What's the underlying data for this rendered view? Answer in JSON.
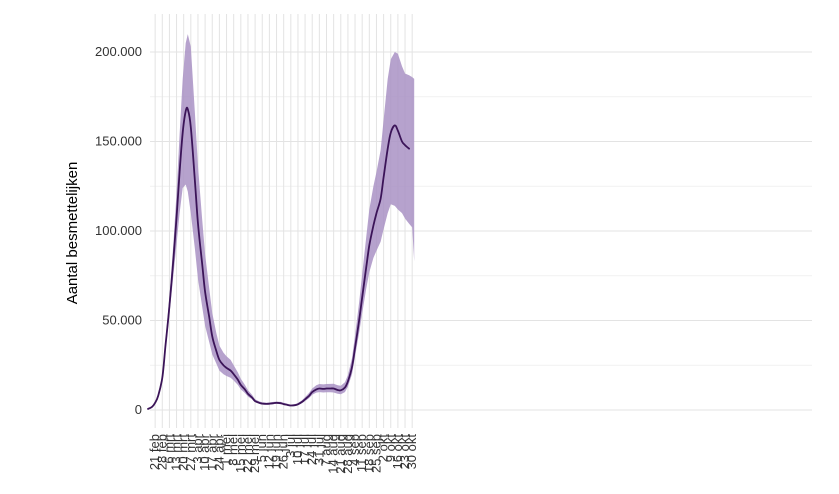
{
  "chart_data": {
    "type": "area",
    "title": "",
    "xlabel": "",
    "ylabel": "Aantal besmettelijken",
    "grid": true,
    "legend": "none",
    "colors": {
      "line": "#3b1458",
      "band": "#a992c4",
      "grid": "#e3e3e3"
    },
    "ylim": [
      0,
      215000
    ],
    "y_ticks": [
      {
        "value": 0,
        "label": "0"
      },
      {
        "value": 50000,
        "label": "50.000"
      },
      {
        "value": 100000,
        "label": "100.000"
      },
      {
        "value": 150000,
        "label": "150.000"
      },
      {
        "value": 200000,
        "label": "200.000"
      }
    ],
    "x_start_date": "2020-02-14",
    "x_ticks": [
      "21 feb",
      "28 feb",
      "6 mrt",
      "13 mrt",
      "20 mrt",
      "27 mrt",
      "3 apr",
      "10 apr",
      "17 apr",
      "24 apr",
      "1 mei",
      "8 mei",
      "15 mei",
      "22 mei",
      "29 mei",
      "5 jun",
      "12 jun",
      "19 jun",
      "26 jun",
      "3 jul",
      "10 jul",
      "17 jul",
      "24 jul",
      "31 jul",
      "7 aug",
      "14 aug",
      "21 aug",
      "28 aug",
      "4 sep",
      "11 sep",
      "18 sep",
      "25 sep",
      "2 okt",
      "9 okt",
      "16 okt",
      "23 okt",
      "30 okt"
    ],
    "series": [
      {
        "values": [
          [
            "2020-02-14",
            600
          ],
          [
            "2020-02-18",
            1800
          ],
          [
            "2020-02-21",
            4000
          ],
          [
            "2020-02-24",
            8000
          ],
          [
            "2020-02-28",
            18000
          ],
          [
            "2020-03-02",
            35000
          ],
          [
            "2020-03-06",
            58000
          ],
          [
            "2020-03-10",
            85000
          ],
          [
            "2020-03-13",
            108000
          ],
          [
            "2020-03-16",
            133000
          ],
          [
            "2020-03-19",
            155000
          ],
          [
            "2020-03-22",
            167000
          ],
          [
            "2020-03-24",
            168000
          ],
          [
            "2020-03-27",
            158000
          ],
          [
            "2020-03-31",
            128000
          ],
          [
            "2020-04-03",
            104000
          ],
          [
            "2020-04-07",
            82000
          ],
          [
            "2020-04-10",
            66000
          ],
          [
            "2020-04-14",
            52000
          ],
          [
            "2020-04-17",
            41000
          ],
          [
            "2020-04-21",
            33000
          ],
          [
            "2020-04-24",
            28000
          ],
          [
            "2020-04-28",
            25000
          ],
          [
            "2020-05-01",
            23500
          ],
          [
            "2020-05-05",
            22000
          ],
          [
            "2020-05-08",
            20000
          ],
          [
            "2020-05-12",
            17000
          ],
          [
            "2020-05-15",
            14000
          ],
          [
            "2020-05-19",
            11500
          ],
          [
            "2020-05-22",
            9000
          ],
          [
            "2020-05-26",
            7000
          ],
          [
            "2020-05-29",
            5000
          ],
          [
            "2020-06-02",
            4000
          ],
          [
            "2020-06-05",
            3600
          ],
          [
            "2020-06-09",
            3400
          ],
          [
            "2020-06-12",
            3500
          ],
          [
            "2020-06-16",
            3800
          ],
          [
            "2020-06-19",
            4000
          ],
          [
            "2020-06-23",
            3800
          ],
          [
            "2020-06-26",
            3300
          ],
          [
            "2020-06-30",
            2800
          ],
          [
            "2020-07-03",
            2500
          ],
          [
            "2020-07-07",
            2700
          ],
          [
            "2020-07-10",
            3200
          ],
          [
            "2020-07-14",
            4500
          ],
          [
            "2020-07-17",
            6000
          ],
          [
            "2020-07-21",
            8000
          ],
          [
            "2020-07-24",
            10000
          ],
          [
            "2020-07-28",
            11500
          ],
          [
            "2020-07-31",
            12000
          ],
          [
            "2020-08-04",
            11800
          ],
          [
            "2020-08-07",
            12000
          ],
          [
            "2020-08-11",
            12000
          ],
          [
            "2020-08-14",
            12000
          ],
          [
            "2020-08-18",
            11200
          ],
          [
            "2020-08-21",
            11000
          ],
          [
            "2020-08-25",
            12500
          ],
          [
            "2020-08-28",
            16000
          ],
          [
            "2020-09-01",
            24000
          ],
          [
            "2020-09-04",
            35000
          ],
          [
            "2020-09-08",
            50000
          ],
          [
            "2020-09-11",
            63000
          ],
          [
            "2020-09-15",
            80000
          ],
          [
            "2020-09-18",
            92000
          ],
          [
            "2020-09-22",
            103000
          ],
          [
            "2020-09-25",
            110000
          ],
          [
            "2020-09-29",
            118000
          ],
          [
            "2020-10-02",
            130000
          ],
          [
            "2020-10-06",
            146000
          ],
          [
            "2020-10-09",
            155000
          ],
          [
            "2020-10-13",
            159000
          ],
          [
            "2020-10-16",
            156000
          ],
          [
            "2020-10-20",
            150000
          ],
          [
            "2020-10-23",
            148000
          ],
          [
            "2020-10-27",
            146000
          ]
        ],
        "band": [
          [
            "2020-02-14",
            500,
            700
          ],
          [
            "2020-02-18",
            1600,
            2000
          ],
          [
            "2020-02-21",
            3600,
            4400
          ],
          [
            "2020-02-24",
            7500,
            8800
          ],
          [
            "2020-02-28",
            16500,
            19500
          ],
          [
            "2020-03-02",
            32000,
            38000
          ],
          [
            "2020-03-06",
            53000,
            63000
          ],
          [
            "2020-03-10",
            76000,
            94000
          ],
          [
            "2020-03-13",
            93000,
            122000
          ],
          [
            "2020-03-16",
            110000,
            154000
          ],
          [
            "2020-03-19",
            124000,
            185000
          ],
          [
            "2020-03-22",
            126000,
            205000
          ],
          [
            "2020-03-24",
            122000,
            210000
          ],
          [
            "2020-03-27",
            110000,
            203000
          ],
          [
            "2020-03-31",
            90000,
            166000
          ],
          [
            "2020-04-03",
            73000,
            136000
          ],
          [
            "2020-04-07",
            58000,
            107000
          ],
          [
            "2020-04-10",
            47000,
            87000
          ],
          [
            "2020-04-14",
            38000,
            68000
          ],
          [
            "2020-04-17",
            31000,
            54000
          ],
          [
            "2020-04-21",
            26000,
            43000
          ],
          [
            "2020-04-24",
            22000,
            36000
          ],
          [
            "2020-04-28",
            20000,
            32000
          ],
          [
            "2020-05-01",
            19000,
            30000
          ],
          [
            "2020-05-05",
            18000,
            28000
          ],
          [
            "2020-05-08",
            16500,
            25000
          ],
          [
            "2020-05-12",
            14000,
            21000
          ],
          [
            "2020-05-15",
            11500,
            17500
          ],
          [
            "2020-05-19",
            9500,
            14000
          ],
          [
            "2020-05-22",
            7500,
            11000
          ],
          [
            "2020-05-26",
            6000,
            8500
          ],
          [
            "2020-05-29",
            4300,
            6000
          ],
          [
            "2020-06-02",
            3500,
            4800
          ],
          [
            "2020-06-05",
            3100,
            4300
          ],
          [
            "2020-06-09",
            2900,
            4100
          ],
          [
            "2020-06-12",
            3000,
            4200
          ],
          [
            "2020-06-16",
            3300,
            4500
          ],
          [
            "2020-06-19",
            3500,
            4700
          ],
          [
            "2020-06-23",
            3300,
            4500
          ],
          [
            "2020-06-26",
            2900,
            4000
          ],
          [
            "2020-06-30",
            2400,
            3400
          ],
          [
            "2020-07-03",
            2100,
            3100
          ],
          [
            "2020-07-07",
            2300,
            3300
          ],
          [
            "2020-07-10",
            2700,
            3900
          ],
          [
            "2020-07-14",
            3800,
            5400
          ],
          [
            "2020-07-17",
            5000,
            7200
          ],
          [
            "2020-07-21",
            6700,
            9600
          ],
          [
            "2020-07-24",
            8500,
            12000
          ],
          [
            "2020-07-28",
            9700,
            13800
          ],
          [
            "2020-07-31",
            10000,
            14500
          ],
          [
            "2020-08-04",
            9800,
            14300
          ],
          [
            "2020-08-07",
            9900,
            14500
          ],
          [
            "2020-08-11",
            9900,
            14600
          ],
          [
            "2020-08-14",
            9800,
            14700
          ],
          [
            "2020-08-18",
            9100,
            13800
          ],
          [
            "2020-08-21",
            8800,
            13600
          ],
          [
            "2020-08-25",
            10000,
            15500
          ],
          [
            "2020-08-28",
            13000,
            19500
          ],
          [
            "2020-09-01",
            20000,
            29000
          ],
          [
            "2020-09-04",
            30000,
            42000
          ],
          [
            "2020-09-08",
            43000,
            60000
          ],
          [
            "2020-09-11",
            54000,
            76000
          ],
          [
            "2020-09-15",
            68000,
            97000
          ],
          [
            "2020-09-18",
            77000,
            112000
          ],
          [
            "2020-09-22",
            85000,
            125000
          ],
          [
            "2020-09-25",
            89000,
            133000
          ],
          [
            "2020-09-29",
            94000,
            145000
          ],
          [
            "2020-10-02",
            101000,
            162000
          ],
          [
            "2020-10-06",
            110000,
            185000
          ],
          [
            "2020-10-09",
            115000,
            196000
          ],
          [
            "2020-10-13",
            114000,
            200000
          ],
          [
            "2020-10-16",
            112000,
            199000
          ],
          [
            "2020-10-20",
            110000,
            192000
          ],
          [
            "2020-10-23",
            107000,
            188000
          ],
          [
            "2020-10-27",
            104000,
            187000
          ],
          [
            "2020-10-30",
            102000,
            186000
          ],
          [
            "2020-11-01",
            83000,
            185000
          ]
        ]
      }
    ]
  }
}
